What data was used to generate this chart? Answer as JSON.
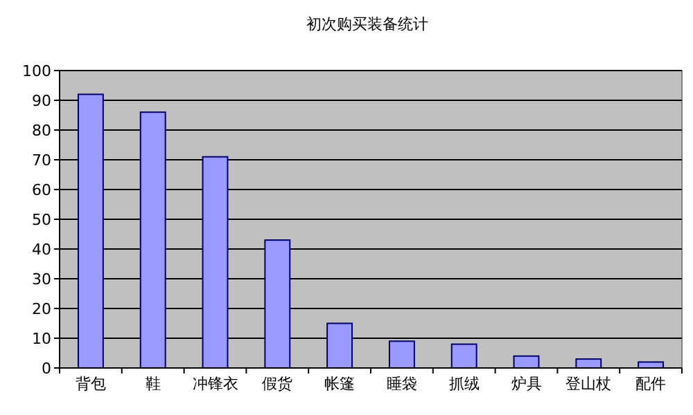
{
  "chart_data": {
    "type": "bar",
    "title": "初次购买装备统计",
    "categories": [
      "背包",
      "鞋",
      "冲锋衣",
      "假货",
      "帐篷",
      "睡袋",
      "抓绒",
      "炉具",
      "登山杖",
      "配件"
    ],
    "values": [
      92,
      86,
      71,
      43,
      15,
      9,
      8,
      4,
      3,
      2
    ],
    "color": "#9999ff",
    "ylim": [
      0,
      100
    ],
    "yticks": [
      0,
      10,
      20,
      30,
      40,
      50,
      60,
      70,
      80,
      90,
      100
    ],
    "grid": "y"
  }
}
